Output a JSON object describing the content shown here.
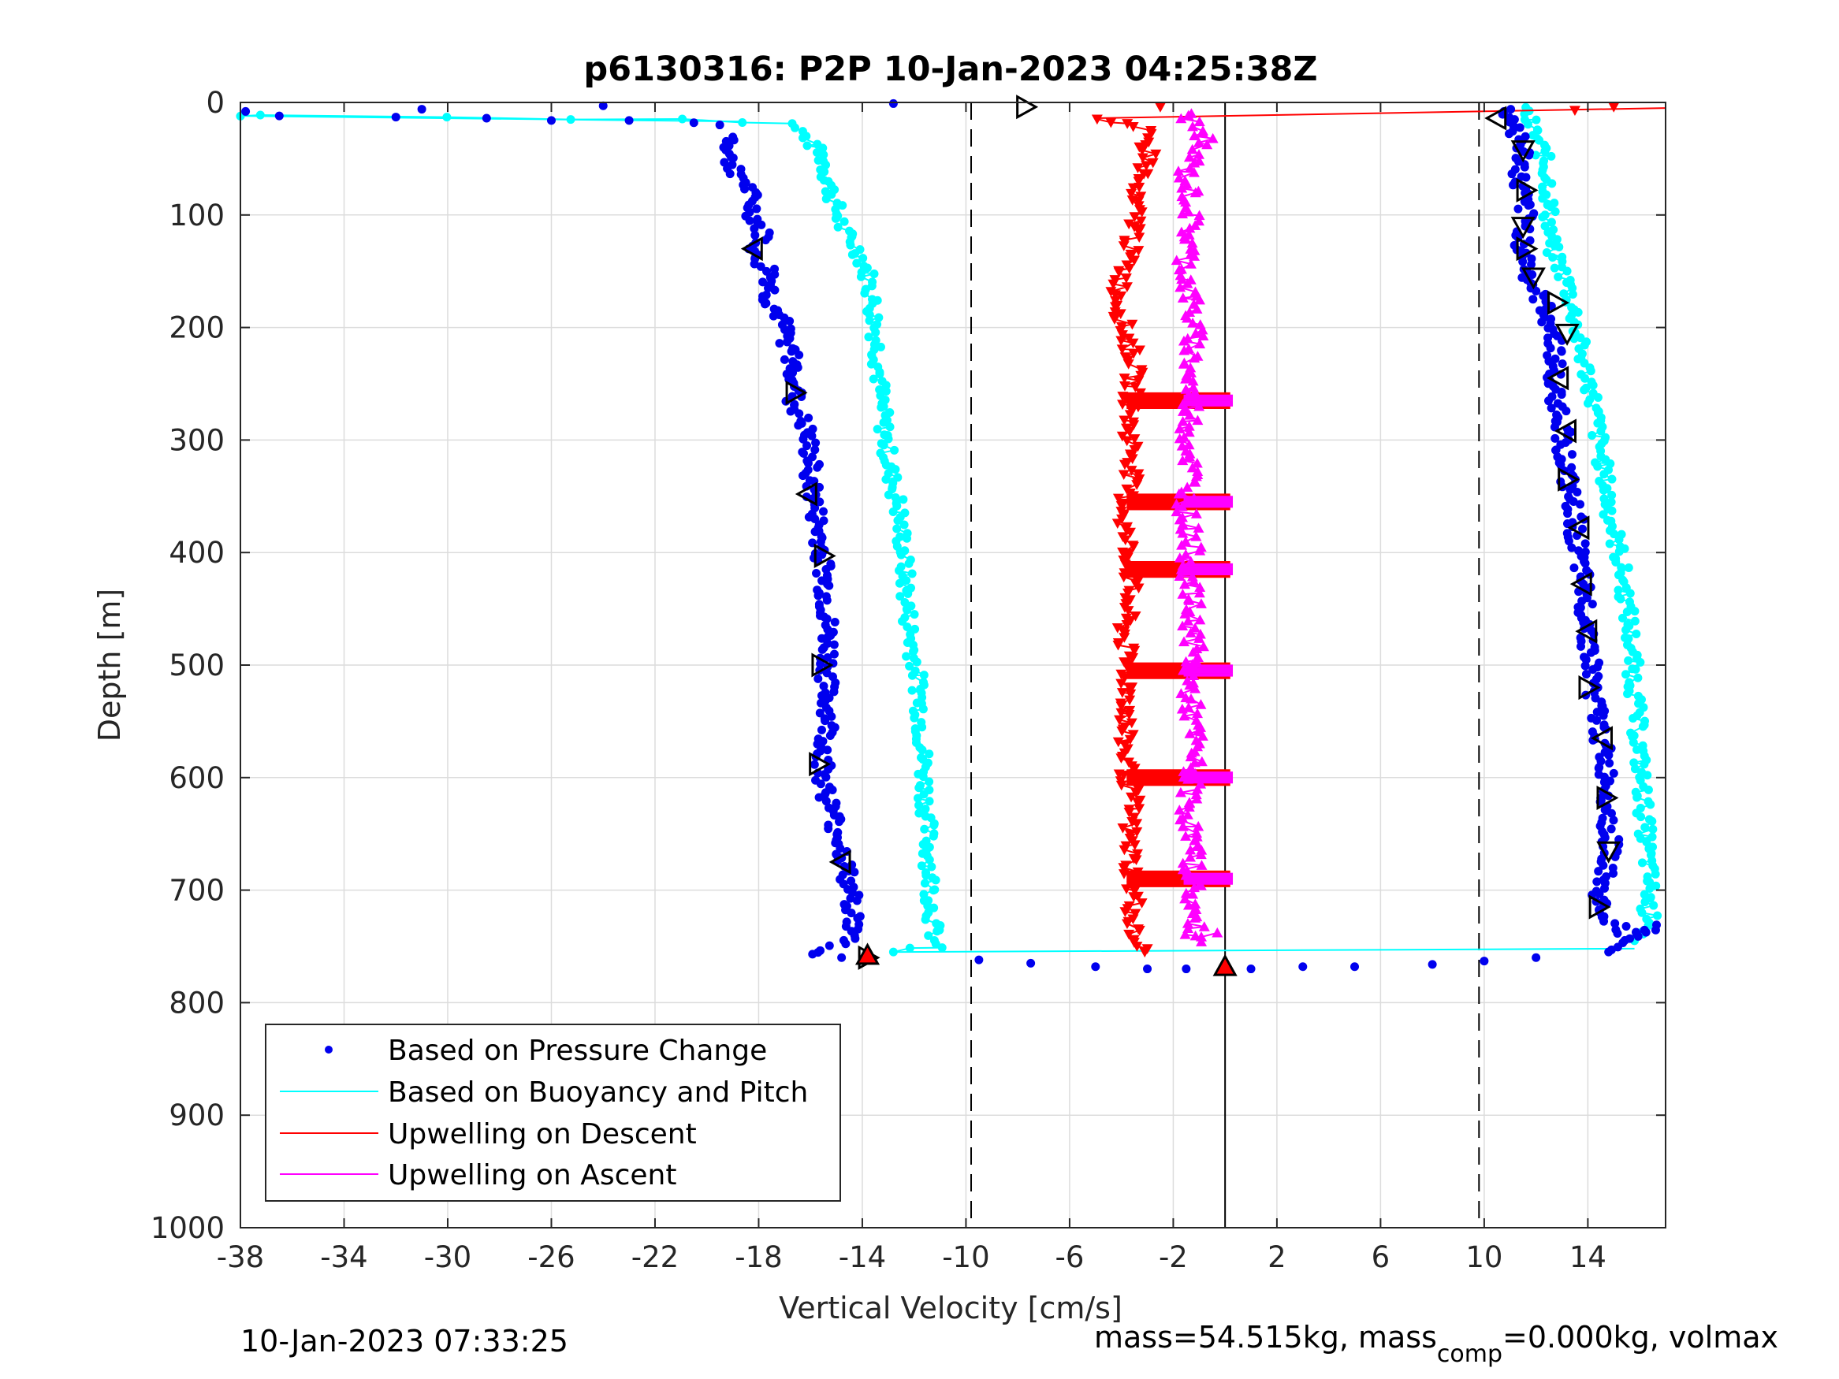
{
  "chart_data": {
    "type": "scatter",
    "title": "p6130316: P2P 10-Jan-2023 04:25:38Z",
    "xlabel": "Vertical Velocity [cm/s]",
    "ylabel": "Depth [m]",
    "xlim": [
      -38,
      17
    ],
    "ylim": [
      0,
      1000
    ],
    "y_reversed": true,
    "grid": true,
    "xticks": [
      -38,
      -34,
      -30,
      -26,
      -22,
      -18,
      -14,
      -10,
      -6,
      -2,
      2,
      6,
      10,
      14
    ],
    "xtick_labels": [
      "-38",
      "-34",
      "-30",
      "-26",
      "-22",
      "-18",
      "-14",
      "-10",
      "-6",
      "-2",
      "2",
      "6",
      "10",
      "14"
    ],
    "yticks": [
      0,
      100,
      200,
      300,
      400,
      500,
      600,
      700,
      800,
      900,
      1000
    ],
    "ytick_labels": [
      "0",
      "100",
      "200",
      "300",
      "400",
      "500",
      "600",
      "700",
      "800",
      "900",
      "1000"
    ],
    "legend_position": "bottom-left",
    "reference_lines": [
      {
        "x": -9.8,
        "style": "dashed",
        "color": "#000000"
      },
      {
        "x": 9.8,
        "style": "dashed",
        "color": "#000000"
      },
      {
        "x": 0,
        "style": "solid",
        "color": "#000000",
        "y_range": [
          0,
          1000
        ]
      }
    ],
    "series": [
      {
        "name": "Based on Pressure Change",
        "color": "#0000ee",
        "marker": "dot",
        "descent": [
          [
            -37.8,
            8
          ],
          [
            -36.5,
            12
          ],
          [
            -32,
            13
          ],
          [
            -31,
            6
          ],
          [
            -28.5,
            14
          ],
          [
            -26,
            16
          ],
          [
            -24,
            3
          ],
          [
            -23,
            16
          ],
          [
            -20.5,
            18
          ],
          [
            -19.5,
            20
          ],
          [
            -19,
            30
          ],
          [
            -19.2,
            50
          ],
          [
            -18.5,
            70
          ],
          [
            -18.2,
            100
          ],
          [
            -17.8,
            120
          ],
          [
            -18.3,
            135
          ],
          [
            -17.5,
            150
          ],
          [
            -17.6,
            175
          ],
          [
            -17.2,
            190
          ],
          [
            -16.8,
            220
          ],
          [
            -16.5,
            250
          ],
          [
            -16.7,
            265
          ],
          [
            -16.2,
            290
          ],
          [
            -16,
            320
          ],
          [
            -15.9,
            350
          ],
          [
            -15.7,
            380
          ],
          [
            -15.5,
            410
          ],
          [
            -15.4,
            450
          ],
          [
            -15.3,
            490
          ],
          [
            -15.4,
            520
          ],
          [
            -15.3,
            550
          ],
          [
            -15.5,
            580
          ],
          [
            -15.5,
            600
          ],
          [
            -15.2,
            630
          ],
          [
            -14.8,
            660
          ],
          [
            -14.6,
            690
          ],
          [
            -14.3,
            720
          ],
          [
            -14.5,
            745
          ],
          [
            -16.0,
            758
          ],
          [
            -14.8,
            760
          ]
        ],
        "ascent": [
          [
            -12.8,
            1
          ],
          [
            10.8,
            5
          ],
          [
            11.2,
            20
          ],
          [
            11.5,
            45
          ],
          [
            11.3,
            70
          ],
          [
            11.6,
            100
          ],
          [
            11.5,
            130
          ],
          [
            11.8,
            160
          ],
          [
            12.5,
            190
          ],
          [
            12.8,
            220
          ],
          [
            12.6,
            250
          ],
          [
            13.0,
            280
          ],
          [
            13.1,
            310
          ],
          [
            13.2,
            340
          ],
          [
            13.5,
            370
          ],
          [
            13.6,
            400
          ],
          [
            13.8,
            430
          ],
          [
            14.0,
            460
          ],
          [
            14.1,
            490
          ],
          [
            14.2,
            520
          ],
          [
            14.4,
            550
          ],
          [
            14.6,
            580
          ],
          [
            14.8,
            610
          ],
          [
            14.8,
            640
          ],
          [
            14.9,
            670
          ],
          [
            14.4,
            700
          ],
          [
            14.5,
            720
          ],
          [
            15.6,
            740
          ],
          [
            16.5,
            732
          ],
          [
            14.8,
            755
          ]
        ],
        "bottom": [
          [
            -9.5,
            762
          ],
          [
            -7.5,
            765
          ],
          [
            -5,
            768
          ],
          [
            -3,
            770
          ],
          [
            -1.5,
            770
          ],
          [
            1,
            770
          ],
          [
            3,
            768
          ],
          [
            5,
            768
          ],
          [
            8,
            766
          ],
          [
            10,
            763
          ],
          [
            12,
            760
          ]
        ]
      },
      {
        "name": "Based on Buoyancy and Pitch",
        "color": "#00ffff",
        "marker": "dot",
        "descent": [
          [
            -38,
            12
          ],
          [
            -37,
            12
          ],
          [
            -30,
            13
          ],
          [
            -25,
            14
          ],
          [
            -21,
            15
          ],
          [
            -18.5,
            17
          ],
          [
            -16.8,
            20
          ],
          [
            -16.2,
            30
          ],
          [
            -15.5,
            50
          ],
          [
            -15.2,
            80
          ],
          [
            -14.8,
            110
          ],
          [
            -14.2,
            130
          ],
          [
            -13.8,
            150
          ],
          [
            -13.6,
            180
          ],
          [
            -13.4,
            220
          ],
          [
            -13.3,
            260
          ],
          [
            -13.1,
            300
          ],
          [
            -12.9,
            330
          ],
          [
            -12.6,
            360
          ],
          [
            -12.4,
            400
          ],
          [
            -12.3,
            440
          ],
          [
            -12.1,
            480
          ],
          [
            -11.8,
            520
          ],
          [
            -11.7,
            560
          ],
          [
            -11.6,
            600
          ],
          [
            -11.5,
            640
          ],
          [
            -11.4,
            680
          ],
          [
            -11.3,
            720
          ],
          [
            -11.2,
            750
          ],
          [
            -12.8,
            755
          ]
        ],
        "ascent": [
          [
            11.5,
            5
          ],
          [
            11.8,
            20
          ],
          [
            12.2,
            40
          ],
          [
            12.5,
            70
          ],
          [
            12.5,
            100
          ],
          [
            12.6,
            130
          ],
          [
            13.2,
            160
          ],
          [
            13.5,
            190
          ],
          [
            13.7,
            220
          ],
          [
            14.1,
            250
          ],
          [
            14.3,
            280
          ],
          [
            14.5,
            310
          ],
          [
            14.7,
            340
          ],
          [
            14.9,
            370
          ],
          [
            15.2,
            400
          ],
          [
            15.4,
            430
          ],
          [
            15.6,
            460
          ],
          [
            15.7,
            490
          ],
          [
            15.8,
            520
          ],
          [
            15.9,
            550
          ],
          [
            16.0,
            580
          ],
          [
            16.1,
            610
          ],
          [
            16.2,
            640
          ],
          [
            16.3,
            670
          ],
          [
            16.4,
            700
          ],
          [
            16.3,
            720
          ],
          [
            16.6,
            730
          ],
          [
            15.8,
            745
          ]
        ]
      },
      {
        "name": "Upwelling on Descent",
        "color": "#ff0000",
        "marker": "triangle-down",
        "points": [
          [
            -5.0,
            14
          ],
          [
            -3.2,
            25
          ],
          [
            -2.9,
            50
          ],
          [
            -3.6,
            80
          ],
          [
            -3.4,
            110
          ],
          [
            -3.8,
            140
          ],
          [
            -4.1,
            170
          ],
          [
            -3.9,
            200
          ],
          [
            -3.5,
            230
          ],
          [
            -3.6,
            260
          ],
          [
            -3.7,
            290
          ],
          [
            -3.5,
            320
          ],
          [
            -3.8,
            350
          ],
          [
            -3.9,
            380
          ],
          [
            -3.6,
            410
          ],
          [
            -3.7,
            440
          ],
          [
            -3.9,
            470
          ],
          [
            -3.8,
            500
          ],
          [
            -3.7,
            530
          ],
          [
            -3.9,
            560
          ],
          [
            -3.8,
            590
          ],
          [
            -3.6,
            620
          ],
          [
            -3.7,
            650
          ],
          [
            -3.6,
            680
          ],
          [
            -3.5,
            710
          ],
          [
            -3.6,
            740
          ],
          [
            -3.1,
            755
          ],
          [
            15,
            4
          ],
          [
            13.5,
            7
          ],
          [
            -2.5,
            4
          ]
        ],
        "horizontal_bands": [
          265,
          355,
          415,
          505,
          600,
          690
        ]
      },
      {
        "name": "Upwelling on Ascent",
        "color": "#ff00ff",
        "marker": "triangle-up",
        "points": [
          [
            -1.6,
            10
          ],
          [
            -0.8,
            30
          ],
          [
            -1.5,
            60
          ],
          [
            -1.3,
            90
          ],
          [
            -1.4,
            120
          ],
          [
            -1.5,
            150
          ],
          [
            -1.3,
            180
          ],
          [
            -1.2,
            210
          ],
          [
            -1.4,
            240
          ],
          [
            -1.3,
            270
          ],
          [
            -1.4,
            300
          ],
          [
            -1.3,
            330
          ],
          [
            -1.5,
            360
          ],
          [
            -1.3,
            390
          ],
          [
            -1.4,
            420
          ],
          [
            -1.3,
            450
          ],
          [
            -1.2,
            480
          ],
          [
            -1.4,
            510
          ],
          [
            -1.3,
            540
          ],
          [
            -1.2,
            570
          ],
          [
            -1.3,
            600
          ],
          [
            -1.4,
            630
          ],
          [
            -1.3,
            660
          ],
          [
            -1.2,
            690
          ],
          [
            -1.3,
            720
          ],
          [
            -1.1,
            745
          ],
          [
            -0.3,
            738
          ]
        ]
      }
    ],
    "open_triangle_markers": [
      [
        -7.7,
        4,
        "right"
      ],
      [
        10.5,
        14,
        "left"
      ],
      [
        11.5,
        42,
        "down"
      ],
      [
        11.6,
        78,
        "right"
      ],
      [
        11.5,
        110,
        "down"
      ],
      [
        -18.2,
        130,
        "left"
      ],
      [
        11.6,
        130,
        "right"
      ],
      [
        11.9,
        155,
        "down"
      ],
      [
        12.8,
        178,
        "right"
      ],
      [
        13.2,
        205,
        "down"
      ],
      [
        12.9,
        245,
        "left"
      ],
      [
        -16.6,
        258,
        "right"
      ],
      [
        13.2,
        292,
        "left"
      ],
      [
        13.2,
        335,
        "right"
      ],
      [
        -16.1,
        348,
        "left"
      ],
      [
        13.7,
        378,
        "left"
      ],
      [
        -15.5,
        403,
        "right"
      ],
      [
        13.8,
        428,
        "left"
      ],
      [
        14.0,
        470,
        "left"
      ],
      [
        -15.6,
        500,
        "right"
      ],
      [
        14.0,
        520,
        "right"
      ],
      [
        14.6,
        565,
        "left"
      ],
      [
        -15.7,
        588,
        "right"
      ],
      [
        14.7,
        618,
        "right"
      ],
      [
        14.8,
        665,
        "down"
      ],
      [
        -14.8,
        675,
        "left"
      ],
      [
        14.4,
        715,
        "right"
      ],
      [
        -13.8,
        760,
        "right"
      ]
    ],
    "filled_markers": [
      {
        "x": -13.8,
        "y": 758,
        "shape": "triangle-up",
        "color": "#ff0000"
      },
      {
        "x": 0,
        "y": 768,
        "shape": "triangle-up",
        "color": "#ff0000"
      }
    ],
    "buoyancy_line_top": [
      [
        -38,
        12
      ],
      [
        -18.5,
        17
      ]
    ],
    "buoyancy_line_bottom": [
      [
        -12.8,
        755
      ],
      [
        15.8,
        752
      ]
    ],
    "descent_line_top": [
      [
        -5.0,
        14
      ],
      [
        17,
        5
      ]
    ]
  },
  "footer": {
    "timestamp": "10-Jan-2023 07:33:25",
    "mass_text_prefix": "mass=54.515kg, mass",
    "mass_text_sub": "comp",
    "mass_text_suffix": "=0.000kg, volmax"
  }
}
